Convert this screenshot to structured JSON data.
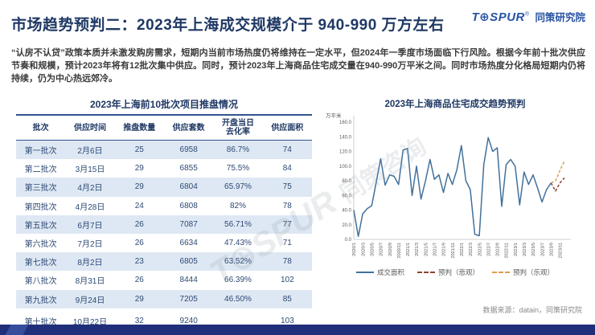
{
  "page": {
    "title": "市场趋势预判二：2023年上海成交规模介于 940-990 万方左右",
    "logo": {
      "brand": "T⊕SPUR",
      "reg": "®",
      "suffix": "同策研究院"
    },
    "body_text": "“认房不认贷”政策本质并未激发购房需求，短期内当前市场热度仍将维持在一定水平，但2024年一季度市场面临下行风险。根据今年前十批次供应节奏和规模，预计2023年将有12批次集中供应。同时，预计2023年上海商品住宅成交量在940-990万平米之间。同时市场热度分化格局短期内仍将持续，仍为中心热远郊冷。",
    "watermark_brand": "T⊕SPUR",
    "watermark_cn": "同策咨询",
    "source": "数据来源：datain，同策研究院"
  },
  "table": {
    "title": "2023年上海前10批次项目推盘情况",
    "headers": [
      "批次",
      "供应时间",
      "推盘数量",
      "供应套数",
      "开盘当日\n去化率",
      "供应面积"
    ],
    "rows": [
      [
        "第一批次",
        "2月6日",
        "25",
        "6958",
        "86.7%",
        "74"
      ],
      [
        "第二批次",
        "3月15日",
        "29",
        "6855",
        "75.5%",
        "84"
      ],
      [
        "第三批次",
        "4月2日",
        "29",
        "6804",
        "65.97%",
        "75"
      ],
      [
        "第四批次",
        "4月28日",
        "24",
        "6808",
        "82%",
        "78"
      ],
      [
        "第五批次",
        "6月7日",
        "26",
        "7087",
        "56.71%",
        "77"
      ],
      [
        "第六批次",
        "7月2日",
        "26",
        "6634",
        "47.43%",
        "71"
      ],
      [
        "第七批次",
        "8月2日",
        "23",
        "6805",
        "63.52%",
        "78"
      ],
      [
        "第八批次",
        "8月31日",
        "26",
        "8444",
        "66.39%",
        "102"
      ],
      [
        "第九批次",
        "9月24日",
        "29",
        "7205",
        "46.50%",
        "85"
      ],
      [
        "第十批次",
        "10月22日",
        "32",
        "9240",
        "",
        "103"
      ]
    ]
  },
  "chart_data": {
    "type": "line",
    "title": "2023年上海商品住宅成交趋势预判",
    "ylabel": "万平米",
    "xlabel": "",
    "ylim": [
      0,
      160
    ],
    "ytick_step": 20,
    "grid": false,
    "legend_position": "bottom",
    "x": [
      "2020/1",
      "2020/2",
      "2020/3",
      "2020/4",
      "2020/5",
      "2020/6",
      "2020/7",
      "2020/8",
      "2020/9",
      "2020/10",
      "2020/11",
      "2020/12",
      "2021/1",
      "2021/2",
      "2021/3",
      "2021/4",
      "2021/5",
      "2021/6",
      "2021/7",
      "2021/8",
      "2021/9",
      "2021/10",
      "2021/11",
      "2021/12",
      "2022/1",
      "2022/2",
      "2022/3",
      "2022/4",
      "2022/5",
      "2022/6",
      "2022/7",
      "2022/8",
      "2022/9",
      "2022/10",
      "2022/11",
      "2022/12",
      "2023/1",
      "2023/2",
      "2023/3",
      "2023/4",
      "2023/5",
      "2023/6",
      "2023/7",
      "2023/8",
      "2023/9",
      "2023/10",
      "2023/11",
      "2023/12"
    ],
    "series": [
      {
        "name": "成交面积",
        "color": "#41719C",
        "dash": "solid",
        "values": [
          40,
          4,
          35,
          42,
          46,
          78,
          110,
          74,
          88,
          86,
          75,
          122,
          124,
          60,
          100,
          55,
          80,
          109,
          82,
          88,
          64,
          90,
          75,
          95,
          128,
          80,
          68,
          7,
          5,
          102,
          139,
          120,
          125,
          45,
          102,
          109,
          100,
          47,
          92,
          75,
          88,
          70,
          51,
          68,
          77,
          null,
          null,
          null
        ]
      },
      {
        "name": "预判（悲观）",
        "color": "#8B4434",
        "dash": "dashed",
        "values": [
          null,
          null,
          null,
          null,
          null,
          null,
          null,
          null,
          null,
          null,
          null,
          null,
          null,
          null,
          null,
          null,
          null,
          null,
          null,
          null,
          null,
          null,
          null,
          null,
          null,
          null,
          null,
          null,
          null,
          null,
          null,
          null,
          null,
          null,
          null,
          null,
          null,
          null,
          null,
          null,
          null,
          null,
          null,
          null,
          77,
          66,
          77,
          84
        ]
      },
      {
        "name": "预判（乐观）",
        "color": "#E09C4E",
        "dash": "dashed",
        "values": [
          null,
          null,
          null,
          null,
          null,
          null,
          null,
          null,
          null,
          null,
          null,
          null,
          null,
          null,
          null,
          null,
          null,
          null,
          null,
          null,
          null,
          null,
          null,
          null,
          null,
          null,
          null,
          null,
          null,
          null,
          null,
          null,
          null,
          null,
          null,
          null,
          null,
          null,
          null,
          null,
          null,
          null,
          null,
          null,
          77,
          80,
          94,
          107
        ]
      }
    ]
  }
}
